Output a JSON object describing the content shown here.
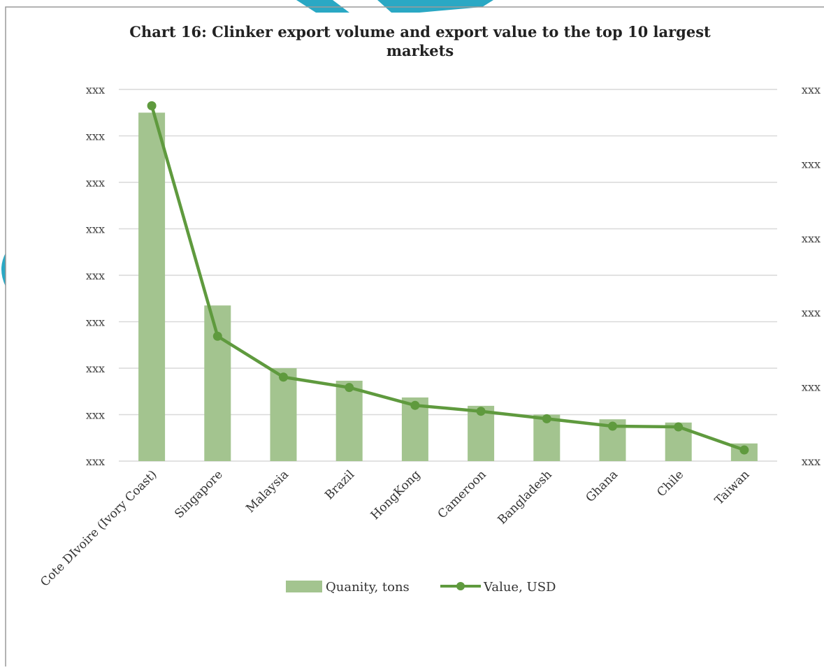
{
  "chart_data": {
    "type": "bar",
    "title_line1": "Chart 16: Clinker export volume and export value to the top 10 largest",
    "title_line2": "markets",
    "categories": [
      "Cote DIvoire (Ivory Coast)",
      "Singapore",
      "Malaysia",
      "Brazil",
      "HongKong",
      "Cameroon",
      "Bangladesh",
      "Ghana",
      "Chile",
      "Taiwan"
    ],
    "series": [
      {
        "name": "Quanity, tons",
        "type": "bar",
        "axis": "left",
        "values": [
          7.5,
          3.35,
          2.0,
          1.73,
          1.37,
          1.19,
          1.0,
          0.9,
          0.83,
          0.38
        ]
      },
      {
        "name": "Value, USD",
        "type": "line",
        "axis": "right",
        "values": [
          4.78,
          1.68,
          1.13,
          0.99,
          0.75,
          0.67,
          0.57,
          0.47,
          0.46,
          0.15
        ]
      }
    ],
    "left_axis": {
      "ylim": [
        0,
        8
      ],
      "tick_labels": [
        "xxx",
        "xxx",
        "xxx",
        "xxx",
        "xxx",
        "xxx",
        "xxx",
        "xxx",
        "xxx"
      ]
    },
    "right_axis": {
      "ylim": [
        0,
        5
      ],
      "tick_labels": [
        "xxx",
        "xxx",
        "xxx",
        "xxx",
        "xxx",
        "xxx"
      ]
    },
    "grid": true,
    "legend_position": "bottom",
    "colors": {
      "bar": "#a3c48f",
      "line": "#5f9a3e",
      "grid": "#d9d9d9",
      "accent": "#2aa8c4"
    }
  }
}
